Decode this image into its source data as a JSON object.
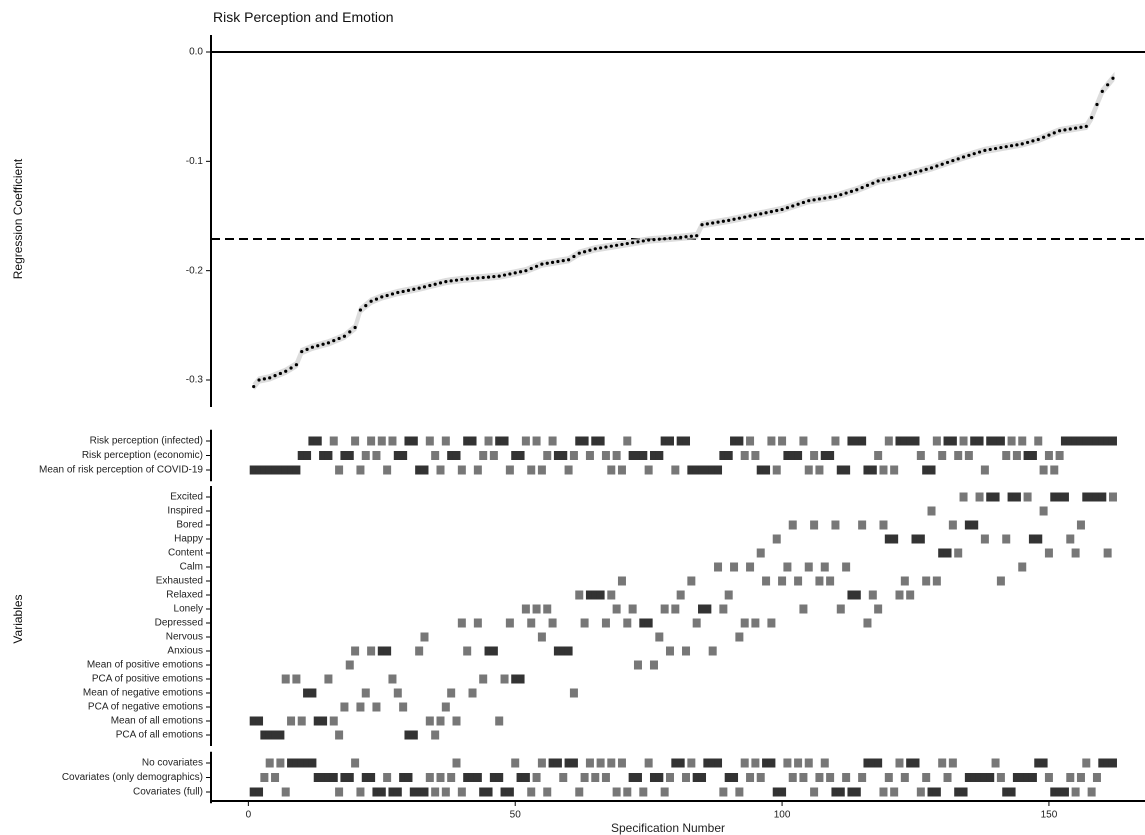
{
  "chart_data": {
    "type": "scatter",
    "title": "Risk Perception and Emotion",
    "top_panel": {
      "ylabel": "Regression Coefficient",
      "yticks": [
        0.0,
        -0.1,
        -0.2,
        -0.3
      ],
      "ytick_labels": [
        "0.0",
        "-0.1",
        "-0.2",
        "-0.3"
      ],
      "ylim": [
        -0.325,
        0.0
      ],
      "reference_lines": [
        {
          "y": 0.0,
          "style": "solid"
        },
        {
          "y": -0.171,
          "style": "dashed"
        }
      ],
      "anchors": [
        [
          1,
          -0.306
        ],
        [
          2,
          -0.3
        ],
        [
          4,
          -0.298
        ],
        [
          7,
          -0.292
        ],
        [
          9,
          -0.286
        ],
        [
          10,
          -0.274
        ],
        [
          12,
          -0.27
        ],
        [
          15,
          -0.266
        ],
        [
          18,
          -0.26
        ],
        [
          20,
          -0.252
        ],
        [
          21,
          -0.236
        ],
        [
          23,
          -0.228
        ],
        [
          25,
          -0.224
        ],
        [
          28,
          -0.22
        ],
        [
          32,
          -0.216
        ],
        [
          37,
          -0.21
        ],
        [
          40,
          -0.208
        ],
        [
          47,
          -0.205
        ],
        [
          52,
          -0.2
        ],
        [
          55,
          -0.194
        ],
        [
          60,
          -0.19
        ],
        [
          62,
          -0.184
        ],
        [
          65,
          -0.18
        ],
        [
          70,
          -0.176
        ],
        [
          75,
          -0.172
        ],
        [
          80,
          -0.17
        ],
        [
          84,
          -0.168
        ],
        [
          85,
          -0.158
        ],
        [
          90,
          -0.154
        ],
        [
          100,
          -0.144
        ],
        [
          105,
          -0.136
        ],
        [
          110,
          -0.132
        ],
        [
          114,
          -0.126
        ],
        [
          118,
          -0.118
        ],
        [
          122,
          -0.114
        ],
        [
          128,
          -0.106
        ],
        [
          134,
          -0.096
        ],
        [
          138,
          -0.09
        ],
        [
          145,
          -0.084
        ],
        [
          148,
          -0.08
        ],
        [
          152,
          -0.072
        ],
        [
          157,
          -0.068
        ],
        [
          158,
          -0.06
        ],
        [
          160,
          -0.036
        ],
        [
          161,
          -0.03
        ],
        [
          162,
          -0.024
        ]
      ]
    },
    "xlabel": "Specification Number",
    "xticks": [
      0,
      50,
      100,
      150
    ],
    "xtick_labels": [
      "0",
      "50",
      "100",
      "150"
    ],
    "xlim": [
      -7,
      168
    ],
    "n_specs": 162,
    "ylabel_variables": "Variables",
    "predictors": [
      "Risk perception (infected)",
      "Risk perception (economic)",
      "Mean of risk perception of COVID-19"
    ],
    "predictor_colors": [
      "#777777",
      "#777777",
      "#777777"
    ],
    "emotions": [
      "Excited",
      "Inspired",
      "Bored",
      "Happy",
      "Content",
      "Calm",
      "Exhausted",
      "Relaxed",
      "Lonely",
      "Depressed",
      "Nervous",
      "Anxious",
      "Mean of positive emotions",
      "PCA of positive emotions",
      "Mean of negative emotions",
      "PCA of negative emotions",
      "Mean of all emotions",
      "PCA of all emotions"
    ],
    "covariates": [
      "No covariates",
      "Covariates (only demographics)",
      "Covariates (full)"
    ],
    "colors": {
      "points": "#000000",
      "band": "#cfcfcf",
      "tile": "#777777",
      "tile_dark": "#333333"
    }
  }
}
